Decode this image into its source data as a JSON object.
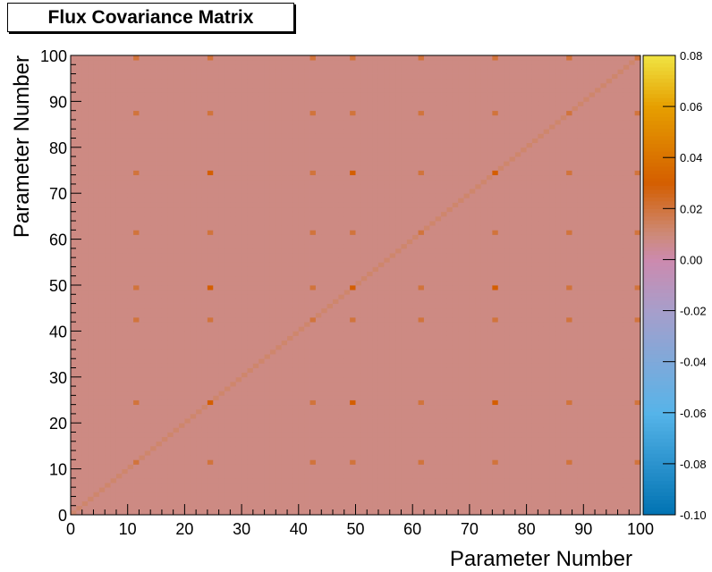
{
  "chart_data": {
    "type": "heatmap",
    "title": "Flux Covariance Matrix",
    "xlabel": "Parameter Number",
    "ylabel": "Parameter Number",
    "xlim": [
      0,
      100
    ],
    "ylim": [
      0,
      100
    ],
    "n_bins": 100,
    "x_ticks": [
      "0",
      "10",
      "20",
      "30",
      "40",
      "50",
      "60",
      "70",
      "80",
      "90",
      "100"
    ],
    "y_ticks": [
      "0",
      "10",
      "20",
      "30",
      "40",
      "50",
      "60",
      "70",
      "80",
      "90",
      "100"
    ],
    "zlim": [
      -0.1,
      0.08
    ],
    "z_ticks": [
      "-0.10",
      "-0.08",
      "-0.06",
      "-0.04",
      "-0.02",
      "0.00",
      "0.02",
      "0.04",
      "0.06",
      "0.08"
    ],
    "background_value": 0.008,
    "diagonal_value": 0.012,
    "hot_parameters": [
      12,
      25,
      43,
      50,
      62,
      75,
      88,
      100
    ],
    "hot_value": 0.02,
    "peak_parameters": [
      25,
      50,
      75
    ],
    "peak_value": 0.03,
    "colormap": [
      {
        "z": -0.1,
        "color": "#0072b2"
      },
      {
        "z": -0.06,
        "color": "#56b4e9"
      },
      {
        "z": -0.02,
        "color": "#a79ecb"
      },
      {
        "z": 0.0,
        "color": "#cc8aae"
      },
      {
        "z": 0.01,
        "color": "#cd8a78"
      },
      {
        "z": 0.03,
        "color": "#d45e00"
      },
      {
        "z": 0.06,
        "color": "#e69f00"
      },
      {
        "z": 0.08,
        "color": "#f0e442"
      }
    ]
  }
}
